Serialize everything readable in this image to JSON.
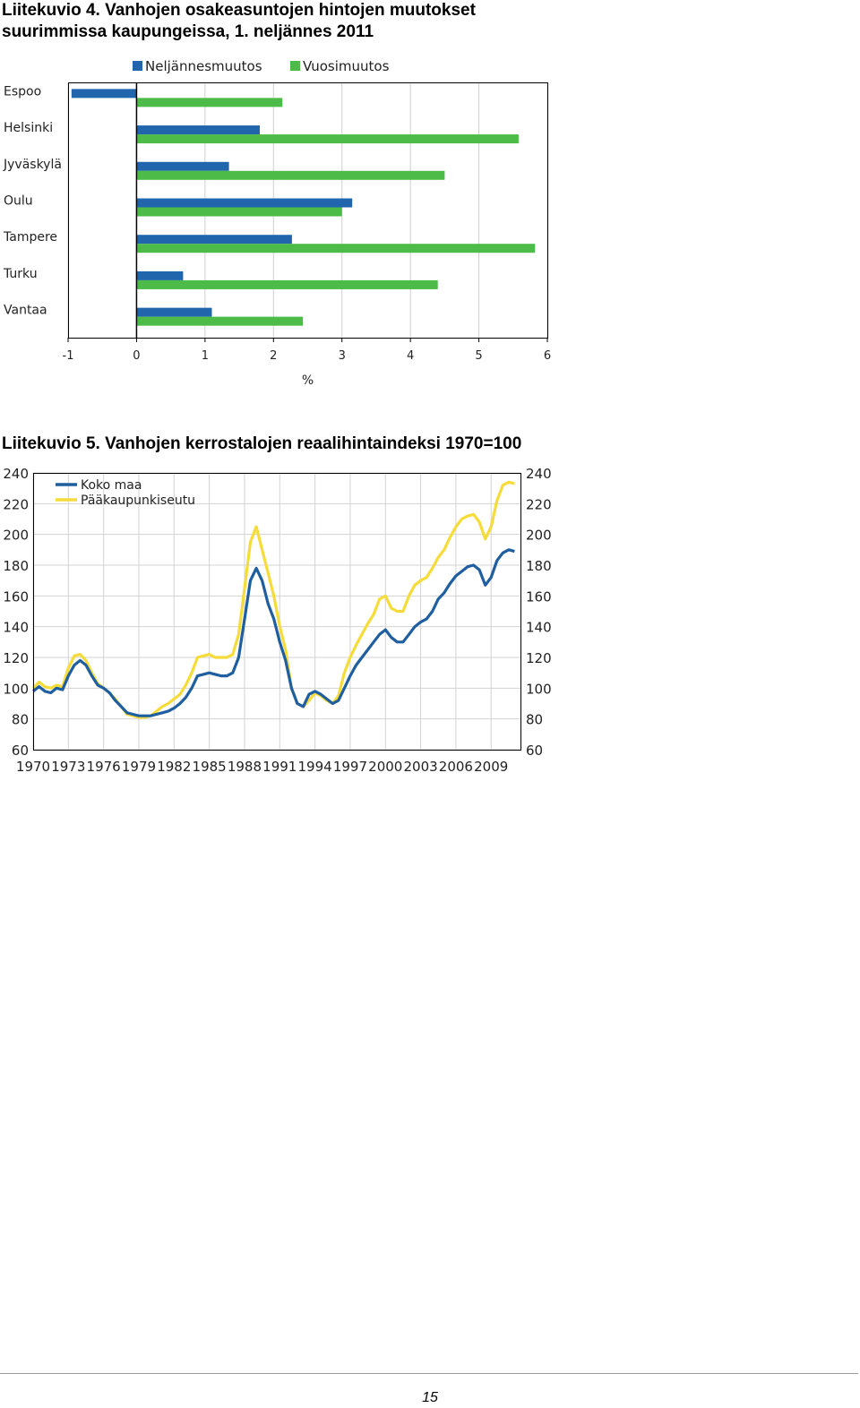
{
  "figure4": {
    "title_line1": "Liitekuvio 4. Vanhojen osakeasuntojen hintojen muutokset",
    "title_line2": "suurimmissa kaupungeissa, 1. neljännes 2011"
  },
  "figure5": {
    "title": "Liitekuvio 5. Vanhojen kerrostalojen reaalihintaindeksi 1970=100"
  },
  "page_number": "15",
  "chart_data": [
    {
      "type": "bar",
      "orientation": "horizontal",
      "categories": [
        "Espoo",
        "Helsinki",
        "Jyväskylä",
        "Oulu",
        "Tampere",
        "Turku",
        "Vantaa"
      ],
      "series": [
        {
          "name": "Neljännesmuutos",
          "color": "#2166ac",
          "values": [
            -0.95,
            1.8,
            1.35,
            3.15,
            2.27,
            0.68,
            1.1
          ]
        },
        {
          "name": "Vuosimuutos",
          "color": "#4cbb47",
          "values": [
            2.13,
            5.58,
            4.5,
            3.0,
            5.82,
            4.4,
            2.43
          ]
        }
      ],
      "xlabel": "%",
      "ylabel": "",
      "xlim": [
        -1,
        6
      ],
      "xticks": [
        "-1",
        "0",
        "1",
        "2",
        "3",
        "4",
        "5",
        "6"
      ],
      "grid": true,
      "legend": "top"
    },
    {
      "type": "line",
      "title": "",
      "xlabel": "",
      "ylabel": "",
      "xlim": [
        1970,
        2011.5
      ],
      "ylim": [
        60,
        240
      ],
      "xticks": [
        "1970",
        "1973",
        "1976",
        "1979",
        "1982",
        "1985",
        "1988",
        "1991",
        "1994",
        "1997",
        "2000",
        "2003",
        "2006",
        "2009"
      ],
      "yticks": [
        "60",
        "80",
        "100",
        "120",
        "140",
        "160",
        "180",
        "200",
        "220",
        "240"
      ],
      "grid": true,
      "legend": "top-left",
      "series": [
        {
          "name": "Koko maa",
          "color": "#1f5fa0",
          "points": [
            [
              1970,
              98
            ],
            [
              1970.5,
              101
            ],
            [
              1971,
              98
            ],
            [
              1971.5,
              97
            ],
            [
              1972,
              100
            ],
            [
              1972.5,
              99
            ],
            [
              1973,
              108
            ],
            [
              1973.5,
              115
            ],
            [
              1974,
              118
            ],
            [
              1974.5,
              115
            ],
            [
              1975,
              108
            ],
            [
              1975.5,
              102
            ],
            [
              1976,
              100
            ],
            [
              1976.5,
              97
            ],
            [
              1977,
              92
            ],
            [
              1977.5,
              88
            ],
            [
              1978,
              84
            ],
            [
              1978.5,
              83
            ],
            [
              1979,
              82
            ],
            [
              1979.5,
              82
            ],
            [
              1980,
              82
            ],
            [
              1980.5,
              83
            ],
            [
              1981,
              84
            ],
            [
              1981.5,
              85
            ],
            [
              1982,
              87
            ],
            [
              1982.5,
              90
            ],
            [
              1983,
              94
            ],
            [
              1983.5,
              100
            ],
            [
              1984,
              108
            ],
            [
              1984.5,
              109
            ],
            [
              1985,
              110
            ],
            [
              1985.5,
              109
            ],
            [
              1986,
              108
            ],
            [
              1986.5,
              108
            ],
            [
              1987,
              110
            ],
            [
              1987.5,
              120
            ],
            [
              1988,
              145
            ],
            [
              1988.5,
              170
            ],
            [
              1989,
              178
            ],
            [
              1989.5,
              170
            ],
            [
              1990,
              155
            ],
            [
              1990.5,
              145
            ],
            [
              1991,
              130
            ],
            [
              1991.5,
              118
            ],
            [
              1992,
              100
            ],
            [
              1992.5,
              90
            ],
            [
              1993,
              88
            ],
            [
              1993.5,
              96
            ],
            [
              1994,
              98
            ],
            [
              1994.5,
              96
            ],
            [
              1995,
              93
            ],
            [
              1995.5,
              90
            ],
            [
              1996,
              92
            ],
            [
              1996.5,
              100
            ],
            [
              1997,
              108
            ],
            [
              1997.5,
              115
            ],
            [
              1998,
              120
            ],
            [
              1998.5,
              125
            ],
            [
              1999,
              130
            ],
            [
              1999.5,
              135
            ],
            [
              2000,
              138
            ],
            [
              2000.5,
              133
            ],
            [
              2001,
              130
            ],
            [
              2001.5,
              130
            ],
            [
              2002,
              135
            ],
            [
              2002.5,
              140
            ],
            [
              2003,
              143
            ],
            [
              2003.5,
              145
            ],
            [
              2004,
              150
            ],
            [
              2004.5,
              158
            ],
            [
              2005,
              162
            ],
            [
              2005.5,
              168
            ],
            [
              2006,
              173
            ],
            [
              2006.5,
              176
            ],
            [
              2007,
              179
            ],
            [
              2007.5,
              180
            ],
            [
              2008,
              177
            ],
            [
              2008.5,
              167
            ],
            [
              2009,
              172
            ],
            [
              2009.5,
              183
            ],
            [
              2010,
              188
            ],
            [
              2010.5,
              190
            ],
            [
              2011,
              189
            ]
          ]
        },
        {
          "name": "Pääkaupunkiseutu",
          "color": "#f5dc3a",
          "points": [
            [
              1970,
              100
            ],
            [
              1970.5,
              104
            ],
            [
              1971,
              101
            ],
            [
              1971.5,
              100
            ],
            [
              1972,
              102
            ],
            [
              1972.5,
              101
            ],
            [
              1973,
              113
            ],
            [
              1973.5,
              121
            ],
            [
              1974,
              122
            ],
            [
              1974.5,
              118
            ],
            [
              1975,
              110
            ],
            [
              1975.5,
              103
            ],
            [
              1976,
              100
            ],
            [
              1976.5,
              97
            ],
            [
              1977,
              93
            ],
            [
              1977.5,
              88
            ],
            [
              1978,
              83
            ],
            [
              1978.5,
              82
            ],
            [
              1979,
              81
            ],
            [
              1979.5,
              81
            ],
            [
              1980,
              82
            ],
            [
              1980.5,
              85
            ],
            [
              1981,
              88
            ],
            [
              1981.5,
              90
            ],
            [
              1982,
              93
            ],
            [
              1982.5,
              96
            ],
            [
              1983,
              102
            ],
            [
              1983.5,
              110
            ],
            [
              1984,
              120
            ],
            [
              1984.5,
              121
            ],
            [
              1985,
              122
            ],
            [
              1985.5,
              120
            ],
            [
              1986,
              120
            ],
            [
              1986.5,
              120
            ],
            [
              1987,
              122
            ],
            [
              1987.5,
              135
            ],
            [
              1988,
              165
            ],
            [
              1988.5,
              195
            ],
            [
              1989,
              205
            ],
            [
              1989.5,
              190
            ],
            [
              1990,
              175
            ],
            [
              1990.5,
              160
            ],
            [
              1991,
              140
            ],
            [
              1991.5,
              125
            ],
            [
              1992,
              100
            ],
            [
              1992.5,
              90
            ],
            [
              1993,
              88
            ],
            [
              1993.5,
              92
            ],
            [
              1994,
              97
            ],
            [
              1994.5,
              95
            ],
            [
              1995,
              92
            ],
            [
              1995.5,
              90
            ],
            [
              1996,
              95
            ],
            [
              1996.5,
              110
            ],
            [
              1997,
              120
            ],
            [
              1997.5,
              128
            ],
            [
              1998,
              135
            ],
            [
              1998.5,
              142
            ],
            [
              1999,
              148
            ],
            [
              1999.5,
              158
            ],
            [
              2000,
              160
            ],
            [
              2000.5,
              152
            ],
            [
              2001,
              150
            ],
            [
              2001.5,
              150
            ],
            [
              2002,
              160
            ],
            [
              2002.5,
              167
            ],
            [
              2003,
              170
            ],
            [
              2003.5,
              172
            ],
            [
              2004,
              178
            ],
            [
              2004.5,
              185
            ],
            [
              2005,
              190
            ],
            [
              2005.5,
              198
            ],
            [
              2006,
              205
            ],
            [
              2006.5,
              210
            ],
            [
              2007,
              212
            ],
            [
              2007.5,
              213
            ],
            [
              2008,
              208
            ],
            [
              2008.5,
              197
            ],
            [
              2009,
              205
            ],
            [
              2009.5,
              222
            ],
            [
              2010,
              232
            ],
            [
              2010.5,
              234
            ],
            [
              2011,
              233
            ]
          ]
        }
      ]
    }
  ]
}
